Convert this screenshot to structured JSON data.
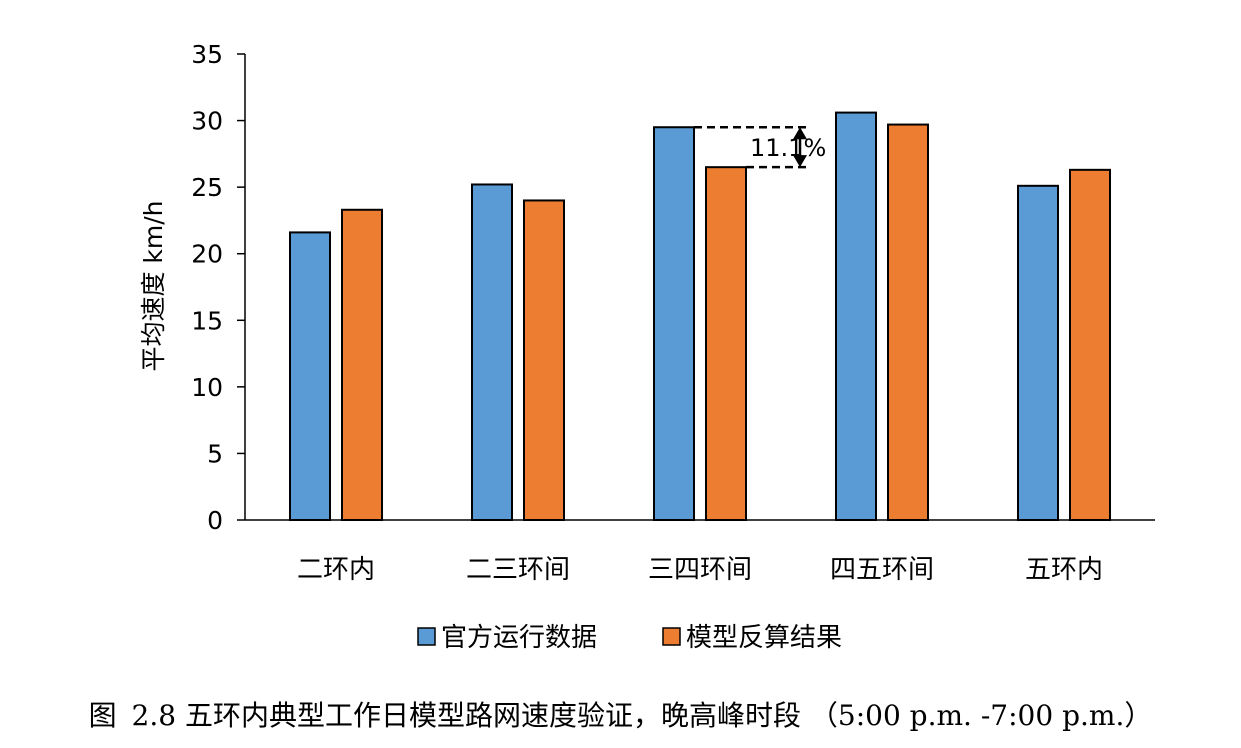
{
  "chart_data": {
    "type": "bar",
    "categories": [
      "二环内",
      "二三环间",
      "三四环间",
      "四五环间",
      "五环内"
    ],
    "series": [
      {
        "name": "官方运行数据",
        "color": "#5b9bd5",
        "values": [
          21.6,
          25.2,
          29.5,
          30.6,
          25.1
        ]
      },
      {
        "name": "模型反算结果",
        "color": "#ed7d31",
        "values": [
          23.3,
          24.0,
          26.5,
          29.7,
          26.3
        ]
      }
    ],
    "ylabel": "平均速度 km/h",
    "ylim": [
      0,
      35
    ],
    "yticks": [
      0,
      5,
      10,
      15,
      20,
      25,
      30,
      35
    ],
    "grid": false,
    "legend": "bottom",
    "annotation": {
      "text": "11.1%",
      "category": "三四环间",
      "from": 26.5,
      "to": 29.5
    }
  },
  "caption": {
    "label": "图",
    "text": "2.8 五环内典型工作日模型路网速度验证，晚高峰时段 （5:00 p.m. -7:00 p.m.）"
  }
}
